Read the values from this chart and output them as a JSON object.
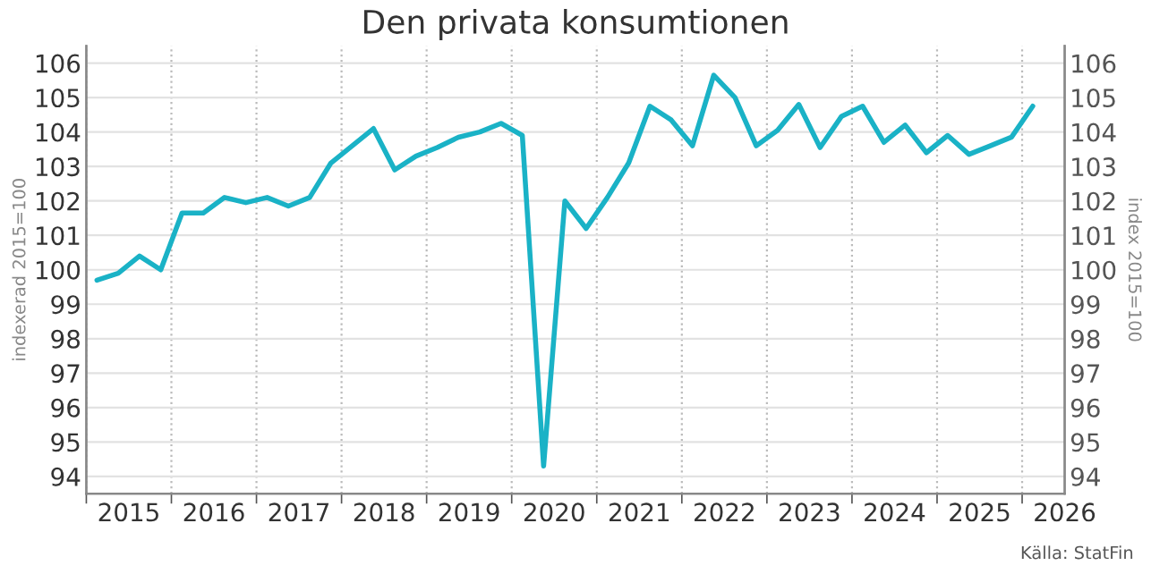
{
  "chart_data": {
    "type": "line",
    "title": "Den privata konsumtionen",
    "ylabel": "indexerad 2015=100",
    "y2label": "index 2015=100",
    "annotations": [
      "Källa: StatFin"
    ],
    "x": [
      2015.125,
      2015.375,
      2015.625,
      2015.875,
      2016.125,
      2016.375,
      2016.625,
      2016.875,
      2017.125,
      2017.375,
      2017.625,
      2017.875,
      2018.125,
      2018.375,
      2018.625,
      2018.875,
      2019.125,
      2019.375,
      2019.625,
      2019.875,
      2020.125,
      2020.375,
      2020.625,
      2020.875,
      2021.125,
      2021.375,
      2021.625,
      2021.875,
      2022.125,
      2022.375,
      2022.625,
      2022.875,
      2023.125,
      2023.375,
      2023.625,
      2023.875,
      2024.125,
      2024.375,
      2024.625,
      2024.875,
      2025.125,
      2025.375,
      2025.625,
      2025.875,
      2026.125
    ],
    "series": [
      {
        "color": "#1ab2c6",
        "values": [
          99.7,
          99.9,
          100.4,
          100.0,
          101.65,
          101.65,
          102.1,
          101.95,
          102.1,
          101.85,
          102.1,
          103.1,
          103.6,
          104.1,
          102.9,
          103.3,
          103.55,
          103.85,
          104.0,
          104.25,
          103.9,
          94.3,
          102.0,
          101.2,
          102.1,
          103.1,
          104.75,
          104.35,
          103.6,
          105.65,
          105.0,
          103.6,
          104.05,
          104.8,
          103.55,
          104.45,
          104.75,
          103.7,
          104.2,
          103.4,
          103.9,
          103.35,
          103.6,
          103.85,
          104.75
        ]
      }
    ],
    "xlim": [
      2015,
      2026.5
    ],
    "xticks": [
      {
        "value": 2015,
        "label": null
      },
      {
        "value": 2016,
        "label": null
      },
      {
        "value": 2017,
        "label": null
      },
      {
        "value": 2018,
        "label": null
      },
      {
        "value": 2019,
        "label": null
      },
      {
        "value": 2020,
        "label": null
      },
      {
        "value": 2021,
        "label": null
      },
      {
        "value": 2022,
        "label": null
      },
      {
        "value": 2023,
        "label": null
      },
      {
        "value": 2024,
        "label": null
      },
      {
        "value": 2025,
        "label": null
      },
      {
        "value": 2026,
        "label": null
      },
      {
        "value": 2015.5,
        "label": "2015"
      },
      {
        "value": 2016.5,
        "label": "2016"
      },
      {
        "value": 2017.5,
        "label": "2017"
      },
      {
        "value": 2018.5,
        "label": "2018"
      },
      {
        "value": 2019.5,
        "label": "2019"
      },
      {
        "value": 2020.5,
        "label": "2020"
      },
      {
        "value": 2021.5,
        "label": "2021"
      },
      {
        "value": 2022.5,
        "label": "2022"
      },
      {
        "value": 2023.5,
        "label": "2023"
      },
      {
        "value": 2024.5,
        "label": "2024"
      },
      {
        "value": 2025.5,
        "label": "2025"
      },
      {
        "value": 2026.5,
        "label": "2026"
      }
    ],
    "ylim": [
      93.5,
      106.5
    ],
    "yticks": [
      94,
      95,
      96,
      97,
      98,
      99,
      100,
      101,
      102,
      103,
      104,
      105,
      106
    ],
    "y2lim": [
      93.5,
      106.5
    ],
    "y2ticks": [
      94,
      95,
      96,
      97,
      98,
      99,
      100,
      101,
      102,
      103,
      104,
      105,
      106
    ],
    "grid": true,
    "legend": false,
    "marker": "none",
    "line_style": "solid"
  }
}
